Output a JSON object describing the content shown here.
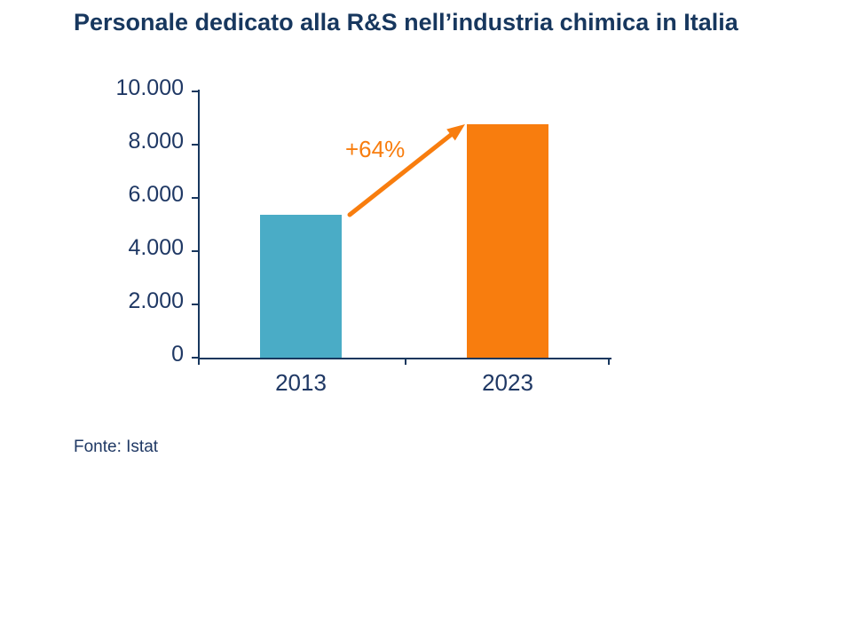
{
  "title": "Personale dedicato alla R&S nell’industria chimica in Italia",
  "source": "Fonte: Istat",
  "colors": {
    "title_navy": "#17375E",
    "axis_text_navy": "#1F3864",
    "axis_line_navy": "#17375E",
    "bar_2013_teal": "#4AACC6",
    "bar_2023_orange": "#F87D0E",
    "arrow_orange": "#F87D0E",
    "background": "#FFFFFF"
  },
  "chart_data": {
    "type": "bar",
    "title": "Personale dedicato alla R&S nell’industria chimica in Italia",
    "categories": [
      "2013",
      "2023"
    ],
    "values": [
      5350,
      8770
    ],
    "bar_colors": [
      "#4AACC6",
      "#F87D0E"
    ],
    "ylim": [
      0,
      10000
    ],
    "ytick_labels_top_down": [
      "10.000",
      "8.000",
      "6.000",
      "4.000",
      "2.000",
      "0"
    ],
    "ytick_values_top_down": [
      10000,
      8000,
      6000,
      4000,
      2000,
      0
    ],
    "xlabel": "",
    "ylabel": "",
    "grid": false,
    "legend": false,
    "annotations": [
      {
        "text": "+64%",
        "type": "arrow",
        "from_category": "2013",
        "to_category": "2023"
      }
    ],
    "source": "Fonte: Istat"
  }
}
